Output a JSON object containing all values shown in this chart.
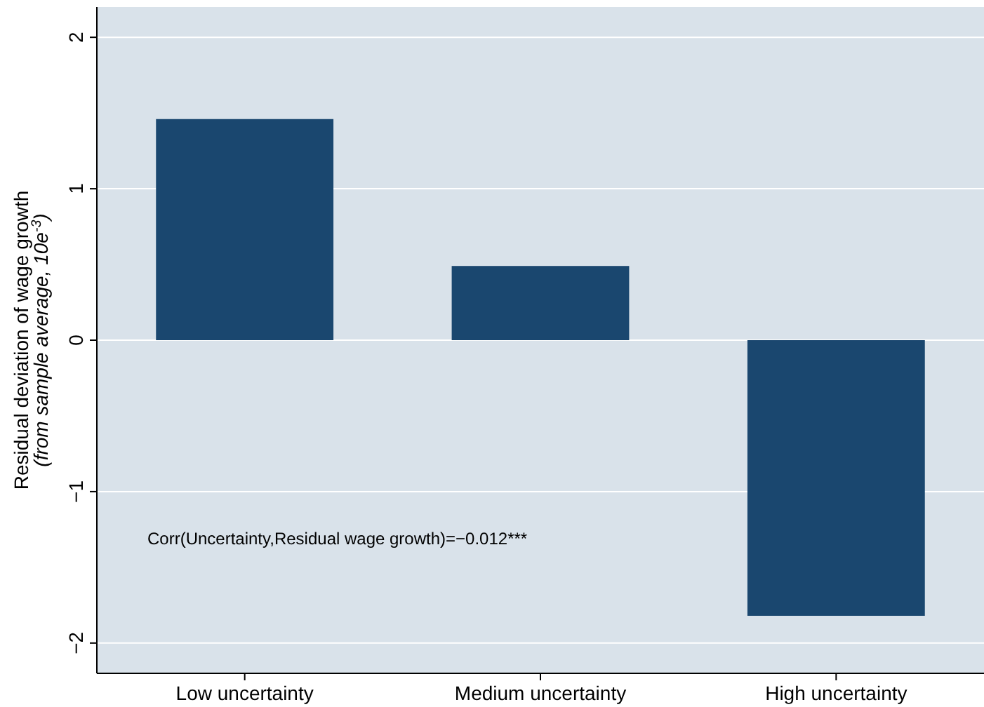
{
  "chart_data": {
    "type": "bar",
    "ylabel": "Residual deviation of wage growth\n(from sample average, 10e$^{-3}$)",
    "categories": [
      "Low uncertainty",
      "Medium uncertainty",
      "High uncertainty"
    ],
    "values": [
      1.46,
      0.49,
      -1.82
    ],
    "color": "#1a476f",
    "ylim": [
      -2.2,
      2.2
    ],
    "yticks": [
      {
        "value": -2,
        "label": "−2"
      },
      {
        "value": -1,
        "label": "−1"
      },
      0,
      1,
      2
    ],
    "grid": "y",
    "annotations": [
      "Corr(Uncertainty,Residual wage growth)=−0.012***"
    ]
  }
}
